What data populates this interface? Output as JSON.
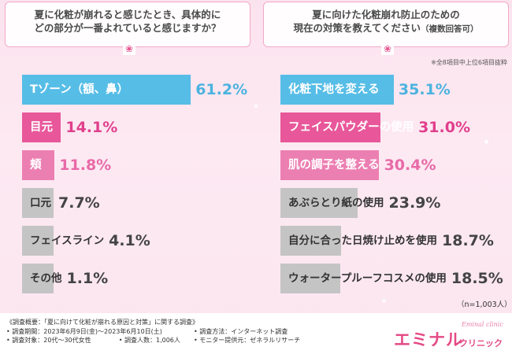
{
  "chart_data": [
    {
      "type": "bar",
      "title": "夏に化粧が崩れると感じたとき、具体的にどの部分が一番よれていると感じますか？",
      "categories": [
        "Tゾーン（額、鼻）",
        "目元",
        "頬",
        "口元",
        "フェイスライン",
        "その他"
      ],
      "values": [
        61.2,
        14.1,
        11.8,
        7.7,
        4.1,
        1.1
      ],
      "value_labels": [
        "61.2%",
        "14.1%",
        "11.8%",
        "7.7%",
        "4.1%",
        "1.1%"
      ],
      "unit": "%",
      "orientation": "horizontal",
      "xlim": [
        0,
        100
      ],
      "colors": [
        "#56bde6",
        "#e8579a",
        "#ec7fb2",
        "#c4c4c4",
        "#c4c4c4",
        "#c4c4c4"
      ],
      "value_colors": [
        "#4bb3df",
        "#e03f8c",
        "#e86aa7",
        "#444444",
        "#444444",
        "#444444"
      ]
    },
    {
      "type": "bar",
      "title": "夏に向けた化粧崩れ防止のための現在の対策を教えてください（複数回答可）",
      "note": "※全8項目中上位6項目抜粋",
      "categories": [
        "化粧下地を変える",
        "フェイスパウダーの使用",
        "肌の調子を整える",
        "あぶらとり紙の使用",
        "自分に合った日焼け止めを使用",
        "ウォータープルーフコスメの使用"
      ],
      "values": [
        35.1,
        31.0,
        30.4,
        23.9,
        18.7,
        18.5
      ],
      "value_labels": [
        "35.1%",
        "31.0%",
        "30.4%",
        "23.9%",
        "18.7%",
        "18.5%"
      ],
      "unit": "%",
      "orientation": "horizontal",
      "xlim": [
        0,
        100
      ],
      "colors": [
        "#56bde6",
        "#e8579a",
        "#ec7fb2",
        "#c4c4c4",
        "#c4c4c4",
        "#c4c4c4"
      ],
      "value_colors": [
        "#4bb3df",
        "#e03f8c",
        "#e86aa7",
        "#444444",
        "#444444",
        "#444444"
      ]
    }
  ],
  "left_question": [
    "夏に化粧が崩れると感じたとき、具体的に",
    "どの部分が一番よれていると感じますか？"
  ],
  "right_question": [
    "夏に向けた化粧崩れ防止のための",
    "現在の対策を教えてください"
  ],
  "right_question_suffix": "（複数回答可）",
  "right_note": "※全8項目中上位6項目抜粋",
  "sample_size": "（n=1,003人）",
  "survey": {
    "title": "《調査概要：「夏に向けて化粧が崩れる原因と対策」に関する調査》",
    "period": "• 調査期間：2023年6月9日(金)〜2023年6月10日(土)",
    "method": "• 調査方法：インターネット調査",
    "target": "• 調査対象：20代〜30代女性",
    "count": "• 調査人数：1,006人",
    "monitor": "• モニター提供元：ゼネラルリサーチ"
  },
  "logo": {
    "main": "エミナル",
    "sub": "クリニック",
    "script": "Eminal clinic"
  }
}
